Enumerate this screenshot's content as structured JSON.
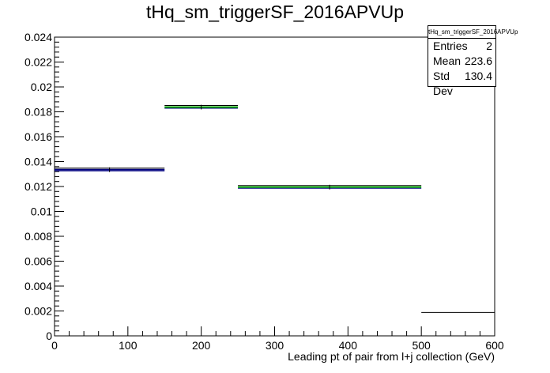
{
  "chart_data": {
    "type": "histogram",
    "title": "tHq_sm_triggerSF_2016APVUp",
    "xlabel": "Leading pt of pair from l+j collection (GeV)",
    "ylabel": "",
    "xlim": [
      0,
      600
    ],
    "ylim": [
      0,
      0.024
    ],
    "x_ticks": [
      "0",
      "100",
      "200",
      "300",
      "400",
      "500",
      "600"
    ],
    "y_ticks": [
      "0",
      "0.002",
      "0.004",
      "0.006",
      "0.008",
      "0.01",
      "0.012",
      "0.014",
      "0.016",
      "0.018",
      "0.02",
      "0.022",
      "0.024"
    ],
    "bins": [
      {
        "x_low": 0,
        "x_high": 150,
        "value": 0.01335
      },
      {
        "x_low": 150,
        "x_high": 250,
        "value": 0.01838
      },
      {
        "x_low": 250,
        "x_high": 500,
        "value": 0.01195
      },
      {
        "x_low": 500,
        "x_high": 600,
        "value": 0.00188
      }
    ],
    "band_colors": {
      "hist": "#000000",
      "up": "#00aa00",
      "nominal": "#000080"
    },
    "stats": {
      "name": "tHq_sm_triggerSF_2016APVUp",
      "entries_label": "Entries",
      "entries": "2",
      "mean_label": "Mean",
      "mean": "223.6",
      "stddev_label": "Std Dev",
      "stddev": "130.4"
    },
    "grid": false,
    "legend": "top-right"
  }
}
